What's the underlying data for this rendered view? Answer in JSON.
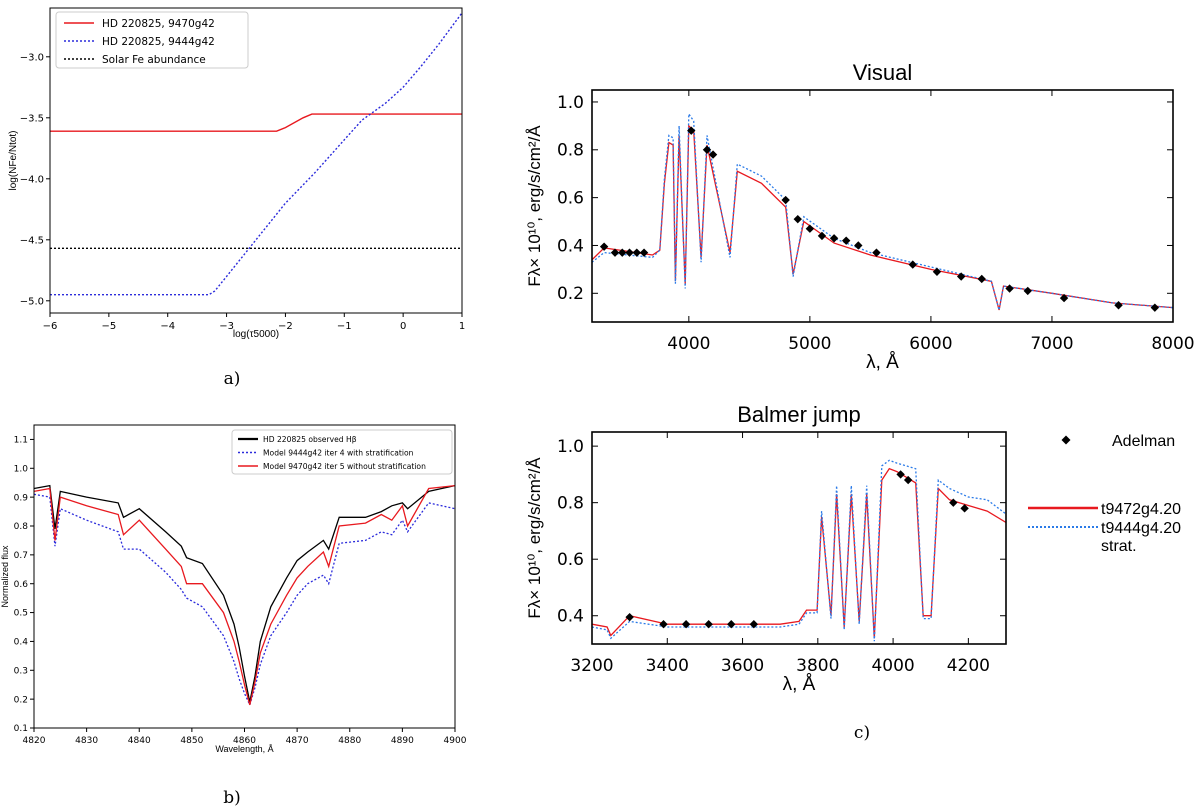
{
  "colors": {
    "red": "#e8191f",
    "blue": "#2b2bdb",
    "lightblue": "#2b7be8",
    "black": "#000000"
  },
  "panel_labels": {
    "a": "a)",
    "b": "b)",
    "c": "c)"
  },
  "chart_data": [
    {
      "id": "a",
      "type": "line",
      "title": "",
      "xlabel": "log(τ5000)",
      "ylabel": "log(NFe/Ntot)",
      "xlim": [
        -6,
        1
      ],
      "ylim": [
        -5.1,
        -2.6
      ],
      "xticks": [
        -6,
        -5,
        -4,
        -3,
        -2,
        -1,
        0,
        1
      ],
      "yticks": [
        -5.0,
        -4.5,
        -4.0,
        -3.5,
        -3.0
      ],
      "ytick_labels": [
        "−5.0",
        "−4.5",
        "−4.0",
        "−3.5",
        "−3.0"
      ],
      "xtick_labels": [
        "−6",
        "−5",
        "−4",
        "−3",
        "−2",
        "−1",
        "0",
        "1"
      ],
      "legend_position": "top-left",
      "series": [
        {
          "name": "HD 220825, 9470g42",
          "style": "solid",
          "color": "#e8191f",
          "x": [
            -6,
            -2.15,
            -2.0,
            -1.7,
            -1.55,
            1
          ],
          "y": [
            -3.61,
            -3.61,
            -3.58,
            -3.5,
            -3.47,
            -3.47
          ]
        },
        {
          "name": "HD 220825, 9444g42",
          "style": "dotted",
          "color": "#2b2bdb",
          "x": [
            -6,
            -3.3,
            -3.2,
            -3.0,
            -2.5,
            -2.0,
            -1.5,
            -1.0,
            -0.7,
            -0.3,
            0,
            0.3,
            0.6,
            1.0
          ],
          "y": [
            -4.95,
            -4.95,
            -4.92,
            -4.8,
            -4.5,
            -4.2,
            -3.95,
            -3.68,
            -3.52,
            -3.38,
            -3.25,
            -3.08,
            -2.9,
            -2.64
          ]
        },
        {
          "name": "Solar Fe abundance",
          "style": "dotted",
          "color": "#000000",
          "x": [
            -6,
            1
          ],
          "y": [
            -4.57,
            -4.57
          ]
        }
      ]
    },
    {
      "id": "b",
      "type": "line",
      "title": "",
      "xlabel": "Wavelength, Å",
      "ylabel": "Normalized flux",
      "xlim": [
        4820,
        4900
      ],
      "ylim": [
        0.1,
        1.15
      ],
      "xticks": [
        4820,
        4830,
        4840,
        4850,
        4860,
        4870,
        4880,
        4890,
        4900
      ],
      "yticks": [
        0.1,
        0.2,
        0.3,
        0.4,
        0.5,
        0.6,
        0.7,
        0.8,
        0.9,
        1.0,
        1.1
      ],
      "legend_position": "top-right",
      "series": [
        {
          "name": "HD 220825 observed Hβ",
          "style": "solid",
          "color": "#000000",
          "x": [
            4820,
            4823,
            4824,
            4825,
            4830,
            4836,
            4837,
            4840,
            4845,
            4848,
            4849,
            4852,
            4856,
            4858,
            4859,
            4860,
            4861,
            4862,
            4863,
            4865,
            4868,
            4870,
            4872,
            4875,
            4876,
            4878,
            4883,
            4886,
            4888,
            4890,
            4891,
            4895,
            4900
          ],
          "y": [
            0.93,
            0.94,
            0.79,
            0.92,
            0.9,
            0.88,
            0.83,
            0.86,
            0.78,
            0.73,
            0.69,
            0.67,
            0.56,
            0.46,
            0.38,
            0.28,
            0.19,
            0.28,
            0.4,
            0.52,
            0.62,
            0.68,
            0.71,
            0.75,
            0.72,
            0.83,
            0.83,
            0.85,
            0.87,
            0.88,
            0.86,
            0.92,
            0.94
          ]
        },
        {
          "name": "Model 9444g42 iter 4 with stratification",
          "style": "dotted",
          "color": "#2b2bdb",
          "x": [
            4820,
            4823,
            4824,
            4825,
            4830,
            4836,
            4837,
            4840,
            4845,
            4848,
            4849,
            4852,
            4856,
            4858,
            4859,
            4860,
            4861,
            4862,
            4863,
            4865,
            4868,
            4870,
            4872,
            4875,
            4876,
            4878,
            4883,
            4886,
            4888,
            4890,
            4891,
            4895,
            4900
          ],
          "y": [
            0.91,
            0.9,
            0.73,
            0.86,
            0.82,
            0.78,
            0.72,
            0.72,
            0.64,
            0.58,
            0.55,
            0.52,
            0.42,
            0.33,
            0.27,
            0.22,
            0.18,
            0.24,
            0.32,
            0.42,
            0.5,
            0.56,
            0.6,
            0.63,
            0.6,
            0.74,
            0.75,
            0.78,
            0.77,
            0.82,
            0.78,
            0.88,
            0.86
          ]
        },
        {
          "name": "Model 9470g42 iter 5 without stratification",
          "style": "solid",
          "color": "#e8191f",
          "x": [
            4820,
            4823,
            4824,
            4825,
            4830,
            4836,
            4837,
            4840,
            4845,
            4848,
            4849,
            4852,
            4856,
            4858,
            4859,
            4860,
            4861,
            4862,
            4863,
            4865,
            4868,
            4870,
            4872,
            4875,
            4876,
            4878,
            4883,
            4886,
            4888,
            4890,
            4891,
            4895,
            4900
          ],
          "y": [
            0.92,
            0.93,
            0.75,
            0.9,
            0.87,
            0.84,
            0.77,
            0.82,
            0.72,
            0.66,
            0.6,
            0.6,
            0.5,
            0.4,
            0.33,
            0.25,
            0.18,
            0.26,
            0.36,
            0.46,
            0.56,
            0.62,
            0.66,
            0.71,
            0.66,
            0.8,
            0.81,
            0.84,
            0.82,
            0.87,
            0.8,
            0.93,
            0.94
          ]
        }
      ]
    },
    {
      "id": "c-visual",
      "type": "line",
      "title": "Visual",
      "xlabel": "λ, Å",
      "ylabel": "Fλ× 10¹⁰, erg/s/cm²/Å",
      "xlim": [
        3200,
        8000
      ],
      "ylim": [
        0.08,
        1.05
      ],
      "xticks": [
        4000,
        5000,
        6000,
        7000,
        8000
      ],
      "yticks": [
        0.2,
        0.4,
        0.6,
        0.8,
        1.0
      ],
      "series": [
        {
          "name": "t9472g4.20",
          "style": "solid",
          "color": "#e8191f",
          "x": [
            3200,
            3300,
            3700,
            3760,
            3798,
            3835,
            3870,
            3889,
            3920,
            3970,
            4000,
            4040,
            4101,
            4150,
            4340,
            4400,
            4600,
            4800,
            4861,
            4950,
            5200,
            5500,
            6000,
            6500,
            6563,
            6600,
            7000,
            7500,
            8000
          ],
          "y": [
            0.34,
            0.39,
            0.36,
            0.38,
            0.66,
            0.83,
            0.82,
            0.25,
            0.86,
            0.24,
            0.9,
            0.88,
            0.35,
            0.82,
            0.37,
            0.71,
            0.66,
            0.56,
            0.28,
            0.5,
            0.41,
            0.36,
            0.3,
            0.25,
            0.13,
            0.23,
            0.2,
            0.16,
            0.14
          ]
        },
        {
          "name": "t9444g4.20 strat.",
          "style": "dotted",
          "color": "#2b7be8",
          "x": [
            3200,
            3300,
            3700,
            3760,
            3798,
            3835,
            3870,
            3889,
            3920,
            3970,
            4000,
            4040,
            4101,
            4150,
            4340,
            4400,
            4600,
            4800,
            4861,
            4950,
            5200,
            5500,
            6000,
            6500,
            6563,
            6600,
            7000,
            7500,
            8000
          ],
          "y": [
            0.33,
            0.37,
            0.35,
            0.38,
            0.68,
            0.86,
            0.85,
            0.24,
            0.9,
            0.22,
            0.95,
            0.92,
            0.33,
            0.86,
            0.35,
            0.74,
            0.69,
            0.59,
            0.27,
            0.52,
            0.43,
            0.37,
            0.31,
            0.25,
            0.13,
            0.23,
            0.2,
            0.16,
            0.14
          ]
        },
        {
          "name": "Adelman",
          "style": "markers",
          "color": "#000000",
          "x": [
            3300,
            3390,
            3450,
            3510,
            3570,
            3630,
            4020,
            4150,
            4200,
            4800,
            4900,
            5000,
            5100,
            5200,
            5300,
            5400,
            5550,
            5850,
            6050,
            6250,
            6420,
            6650,
            6800,
            7100,
            7550,
            7850
          ],
          "y": [
            0.395,
            0.37,
            0.37,
            0.37,
            0.37,
            0.37,
            0.88,
            0.8,
            0.78,
            0.59,
            0.51,
            0.47,
            0.44,
            0.43,
            0.42,
            0.4,
            0.37,
            0.32,
            0.29,
            0.27,
            0.26,
            0.22,
            0.21,
            0.18,
            0.15,
            0.14
          ]
        }
      ]
    },
    {
      "id": "c-balmer",
      "type": "line",
      "title": "Balmer jump",
      "xlabel": "λ, Å",
      "ylabel": "Fλ× 10¹⁰, erg/s/cm²/Å",
      "xlim": [
        3200,
        4300
      ],
      "ylim": [
        0.3,
        1.05
      ],
      "xticks": [
        3200,
        3400,
        3600,
        3800,
        4000,
        4200
      ],
      "yticks": [
        0.4,
        0.6,
        0.8,
        1.0
      ],
      "series": [
        {
          "name": "t9472g4.20",
          "style": "solid",
          "color": "#e8191f",
          "x": [
            3200,
            3240,
            3250,
            3300,
            3400,
            3500,
            3600,
            3700,
            3750,
            3770,
            3798,
            3810,
            3835,
            3850,
            3870,
            3889,
            3910,
            3930,
            3950,
            3970,
            3990,
            4010,
            4060,
            4080,
            4101,
            4120,
            4150,
            4200,
            4250,
            4300
          ],
          "y": [
            0.37,
            0.36,
            0.33,
            0.4,
            0.37,
            0.37,
            0.37,
            0.37,
            0.38,
            0.42,
            0.42,
            0.75,
            0.4,
            0.83,
            0.36,
            0.83,
            0.38,
            0.83,
            0.32,
            0.88,
            0.92,
            0.91,
            0.87,
            0.4,
            0.4,
            0.85,
            0.81,
            0.79,
            0.77,
            0.73
          ]
        },
        {
          "name": "t9444g4.20 strat.",
          "style": "dotted",
          "color": "#2b7be8",
          "x": [
            3200,
            3240,
            3250,
            3300,
            3400,
            3500,
            3600,
            3700,
            3750,
            3770,
            3798,
            3810,
            3835,
            3850,
            3870,
            3889,
            3910,
            3930,
            3950,
            3970,
            3990,
            4010,
            4060,
            4080,
            4101,
            4120,
            4150,
            4200,
            4250,
            4300
          ],
          "y": [
            0.36,
            0.35,
            0.32,
            0.38,
            0.36,
            0.36,
            0.36,
            0.36,
            0.37,
            0.41,
            0.41,
            0.77,
            0.39,
            0.86,
            0.35,
            0.86,
            0.37,
            0.86,
            0.31,
            0.93,
            0.95,
            0.94,
            0.92,
            0.39,
            0.39,
            0.88,
            0.85,
            0.82,
            0.81,
            0.76
          ]
        },
        {
          "name": "Adelman",
          "style": "markers",
          "color": "#000000",
          "x": [
            3300,
            3390,
            3450,
            3510,
            3570,
            3630,
            4020,
            4040,
            4160,
            4190
          ],
          "y": [
            0.395,
            0.37,
            0.37,
            0.37,
            0.37,
            0.37,
            0.9,
            0.88,
            0.8,
            0.78
          ]
        }
      ]
    }
  ],
  "legend_c": {
    "markers_label": "Adelman",
    "red_label": "t9472g4.20",
    "blue_label_1": "t9444g4.20",
    "blue_label_2": "strat."
  }
}
